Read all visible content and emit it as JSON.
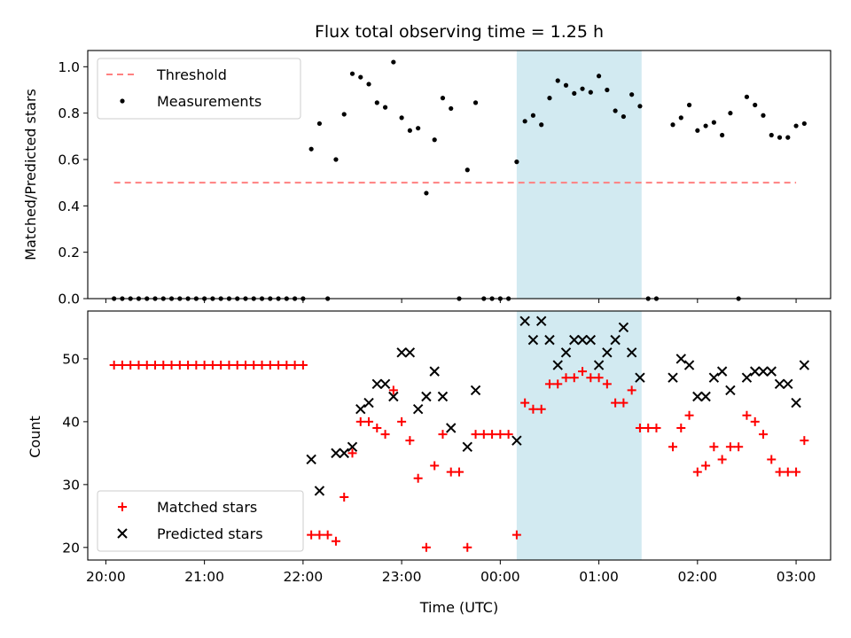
{
  "figure": {
    "title": "Flux total observing time = 1.25 h"
  },
  "chart_data": [
    {
      "type": "scatter",
      "panel": "top",
      "title": "Flux total observing time = 1.25 h",
      "xlabel": "",
      "ylabel": "Matched/Predicted stars",
      "xlim": [
        "19:49",
        "03:21"
      ],
      "ylim": [
        0,
        1.07
      ],
      "yticks": [
        "0.0",
        "0.2",
        "0.4",
        "0.6",
        "0.8",
        "1.0"
      ],
      "grid": false,
      "legend_position": "top-left",
      "highlight_span": {
        "start": "00:10",
        "end": "01:26",
        "color": "#add8e6"
      },
      "threshold": {
        "name": "Threshold",
        "y": 0.5,
        "x_start": "20:05",
        "x_end": "03:00",
        "color": "#ff8080",
        "style": "dashed"
      },
      "series": [
        {
          "name": "Measurements",
          "color": "#000000",
          "marker": "dot",
          "points": [
            [
              "20:05",
              0
            ],
            [
              "20:10",
              0
            ],
            [
              "20:15",
              0
            ],
            [
              "20:20",
              0
            ],
            [
              "20:25",
              0
            ],
            [
              "20:30",
              0
            ],
            [
              "20:35",
              0
            ],
            [
              "20:40",
              0
            ],
            [
              "20:45",
              0
            ],
            [
              "20:50",
              0
            ],
            [
              "20:55",
              0
            ],
            [
              "21:00",
              0
            ],
            [
              "21:05",
              0
            ],
            [
              "21:10",
              0
            ],
            [
              "21:15",
              0
            ],
            [
              "21:20",
              0
            ],
            [
              "21:25",
              0
            ],
            [
              "21:30",
              0
            ],
            [
              "21:35",
              0
            ],
            [
              "21:40",
              0
            ],
            [
              "21:45",
              0
            ],
            [
              "21:50",
              0
            ],
            [
              "21:55",
              0
            ],
            [
              "22:00",
              0
            ],
            [
              "22:05",
              0.645
            ],
            [
              "22:10",
              0.755
            ],
            [
              "22:15",
              0.0
            ],
            [
              "22:20",
              0.6
            ],
            [
              "22:25",
              0.795
            ],
            [
              "22:30",
              0.97
            ],
            [
              "22:35",
              0.955
            ],
            [
              "22:40",
              0.925
            ],
            [
              "22:45",
              0.845
            ],
            [
              "22:50",
              0.825
            ],
            [
              "22:55",
              1.02
            ],
            [
              "23:00",
              0.78
            ],
            [
              "23:05",
              0.725
            ],
            [
              "23:10",
              0.735
            ],
            [
              "23:15",
              0.455
            ],
            [
              "23:20",
              0.685
            ],
            [
              "23:25",
              0.865
            ],
            [
              "23:30",
              0.82
            ],
            [
              "23:35",
              0.0
            ],
            [
              "23:40",
              0.555
            ],
            [
              "23:45",
              0.845
            ],
            [
              "23:50",
              0.0
            ],
            [
              "23:55",
              0.0
            ],
            [
              "00:00",
              0.0
            ],
            [
              "00:05",
              0.0
            ],
            [
              "00:10",
              0.59
            ],
            [
              "00:15",
              0.765
            ],
            [
              "00:20",
              0.79
            ],
            [
              "00:25",
              0.75
            ],
            [
              "00:30",
              0.865
            ],
            [
              "00:35",
              0.94
            ],
            [
              "00:40",
              0.92
            ],
            [
              "00:45",
              0.885
            ],
            [
              "00:50",
              0.905
            ],
            [
              "00:55",
              0.89
            ],
            [
              "01:00",
              0.96
            ],
            [
              "01:05",
              0.9
            ],
            [
              "01:10",
              0.81
            ],
            [
              "01:15",
              0.785
            ],
            [
              "01:20",
              0.88
            ],
            [
              "01:25",
              0.83
            ],
            [
              "01:30",
              0.0
            ],
            [
              "01:35",
              0.0
            ],
            [
              "01:45",
              0.75
            ],
            [
              "01:50",
              0.78
            ],
            [
              "01:55",
              0.835
            ],
            [
              "02:00",
              0.725
            ],
            [
              "02:05",
              0.745
            ],
            [
              "02:10",
              0.76
            ],
            [
              "02:15",
              0.705
            ],
            [
              "02:20",
              0.8
            ],
            [
              "02:25",
              0.0
            ],
            [
              "02:30",
              0.87
            ],
            [
              "02:35",
              0.835
            ],
            [
              "02:40",
              0.79
            ],
            [
              "02:45",
              0.705
            ],
            [
              "02:50",
              0.695
            ],
            [
              "02:55",
              0.695
            ],
            [
              "03:00",
              0.745
            ],
            [
              "03:05",
              0.755
            ]
          ]
        }
      ]
    },
    {
      "type": "scatter",
      "panel": "bottom",
      "xlabel": "Time (UTC)",
      "ylabel": "Count",
      "xlim": [
        "19:49",
        "03:21"
      ],
      "ylim": [
        18,
        57.6
      ],
      "yticks": [
        "20",
        "30",
        "40",
        "50"
      ],
      "xticks": [
        "20:00",
        "21:00",
        "22:00",
        "23:00",
        "00:00",
        "01:00",
        "02:00",
        "03:00"
      ],
      "grid": false,
      "legend_position": "bottom-left",
      "highlight_span": {
        "start": "00:10",
        "end": "01:26",
        "color": "#add8e6"
      },
      "series": [
        {
          "name": "Matched stars",
          "color": "#ff0000",
          "marker": "plus",
          "points": [
            [
              "20:05",
              49
            ],
            [
              "20:10",
              49
            ],
            [
              "20:15",
              49
            ],
            [
              "20:20",
              49
            ],
            [
              "20:25",
              49
            ],
            [
              "20:30",
              49
            ],
            [
              "20:35",
              49
            ],
            [
              "20:40",
              49
            ],
            [
              "20:45",
              49
            ],
            [
              "20:50",
              49
            ],
            [
              "20:55",
              49
            ],
            [
              "21:00",
              49
            ],
            [
              "21:05",
              49
            ],
            [
              "21:10",
              49
            ],
            [
              "21:15",
              49
            ],
            [
              "21:20",
              49
            ],
            [
              "21:25",
              49
            ],
            [
              "21:30",
              49
            ],
            [
              "21:35",
              49
            ],
            [
              "21:40",
              49
            ],
            [
              "21:45",
              49
            ],
            [
              "21:50",
              49
            ],
            [
              "21:55",
              49
            ],
            [
              "22:00",
              49
            ],
            [
              "22:05",
              22
            ],
            [
              "22:10",
              22
            ],
            [
              "22:15",
              22
            ],
            [
              "22:20",
              21
            ],
            [
              "22:25",
              28
            ],
            [
              "22:30",
              35
            ],
            [
              "22:35",
              40
            ],
            [
              "22:40",
              40
            ],
            [
              "22:45",
              39
            ],
            [
              "22:50",
              38
            ],
            [
              "22:55",
              45
            ],
            [
              "23:00",
              40
            ],
            [
              "23:05",
              37
            ],
            [
              "23:10",
              31
            ],
            [
              "23:15",
              20
            ],
            [
              "23:20",
              33
            ],
            [
              "23:25",
              38
            ],
            [
              "23:30",
              32
            ],
            [
              "23:35",
              32
            ],
            [
              "23:40",
              20
            ],
            [
              "23:45",
              38
            ],
            [
              "23:50",
              38
            ],
            [
              "23:55",
              38
            ],
            [
              "00:00",
              38
            ],
            [
              "00:05",
              38
            ],
            [
              "00:10",
              22
            ],
            [
              "00:15",
              43
            ],
            [
              "00:20",
              42
            ],
            [
              "00:25",
              42
            ],
            [
              "00:30",
              46
            ],
            [
              "00:35",
              46
            ],
            [
              "00:40",
              47
            ],
            [
              "00:45",
              47
            ],
            [
              "00:50",
              48
            ],
            [
              "00:55",
              47
            ],
            [
              "01:00",
              47
            ],
            [
              "01:05",
              46
            ],
            [
              "01:10",
              43
            ],
            [
              "01:15",
              43
            ],
            [
              "01:20",
              45
            ],
            [
              "01:25",
              39
            ],
            [
              "01:30",
              39
            ],
            [
              "01:35",
              39
            ],
            [
              "01:45",
              36
            ],
            [
              "01:50",
              39
            ],
            [
              "01:55",
              41
            ],
            [
              "02:00",
              32
            ],
            [
              "02:05",
              33
            ],
            [
              "02:10",
              36
            ],
            [
              "02:15",
              34
            ],
            [
              "02:20",
              36
            ],
            [
              "02:25",
              36
            ],
            [
              "02:30",
              41
            ],
            [
              "02:35",
              40
            ],
            [
              "02:40",
              38
            ],
            [
              "02:45",
              34
            ],
            [
              "02:50",
              32
            ],
            [
              "02:55",
              32
            ],
            [
              "03:00",
              32
            ],
            [
              "03:05",
              37
            ]
          ]
        },
        {
          "name": "Predicted stars",
          "color": "#000000",
          "marker": "x",
          "points": [
            [
              "22:05",
              34
            ],
            [
              "22:10",
              29
            ],
            [
              "22:20",
              35
            ],
            [
              "22:25",
              35
            ],
            [
              "22:30",
              36
            ],
            [
              "22:35",
              42
            ],
            [
              "22:40",
              43
            ],
            [
              "22:45",
              46
            ],
            [
              "22:50",
              46
            ],
            [
              "22:55",
              44
            ],
            [
              "23:00",
              51
            ],
            [
              "23:05",
              51
            ],
            [
              "23:10",
              42
            ],
            [
              "23:15",
              44
            ],
            [
              "23:20",
              48
            ],
            [
              "23:25",
              44
            ],
            [
              "23:30",
              39
            ],
            [
              "23:40",
              36
            ],
            [
              "23:45",
              45
            ],
            [
              "00:10",
              37
            ],
            [
              "00:15",
              56
            ],
            [
              "00:20",
              53
            ],
            [
              "00:25",
              56
            ],
            [
              "00:30",
              53
            ],
            [
              "00:35",
              49
            ],
            [
              "00:40",
              51
            ],
            [
              "00:45",
              53
            ],
            [
              "00:50",
              53
            ],
            [
              "00:55",
              53
            ],
            [
              "01:00",
              49
            ],
            [
              "01:05",
              51
            ],
            [
              "01:10",
              53
            ],
            [
              "01:15",
              55
            ],
            [
              "01:20",
              51
            ],
            [
              "01:25",
              47
            ],
            [
              "01:45",
              47
            ],
            [
              "01:50",
              50
            ],
            [
              "01:55",
              49
            ],
            [
              "02:00",
              44
            ],
            [
              "02:05",
              44
            ],
            [
              "02:10",
              47
            ],
            [
              "02:15",
              48
            ],
            [
              "02:20",
              45
            ],
            [
              "02:30",
              47
            ],
            [
              "02:35",
              48
            ],
            [
              "02:40",
              48
            ],
            [
              "02:45",
              48
            ],
            [
              "02:50",
              46
            ],
            [
              "02:55",
              46
            ],
            [
              "03:00",
              43
            ],
            [
              "03:05",
              49
            ]
          ]
        }
      ]
    }
  ]
}
